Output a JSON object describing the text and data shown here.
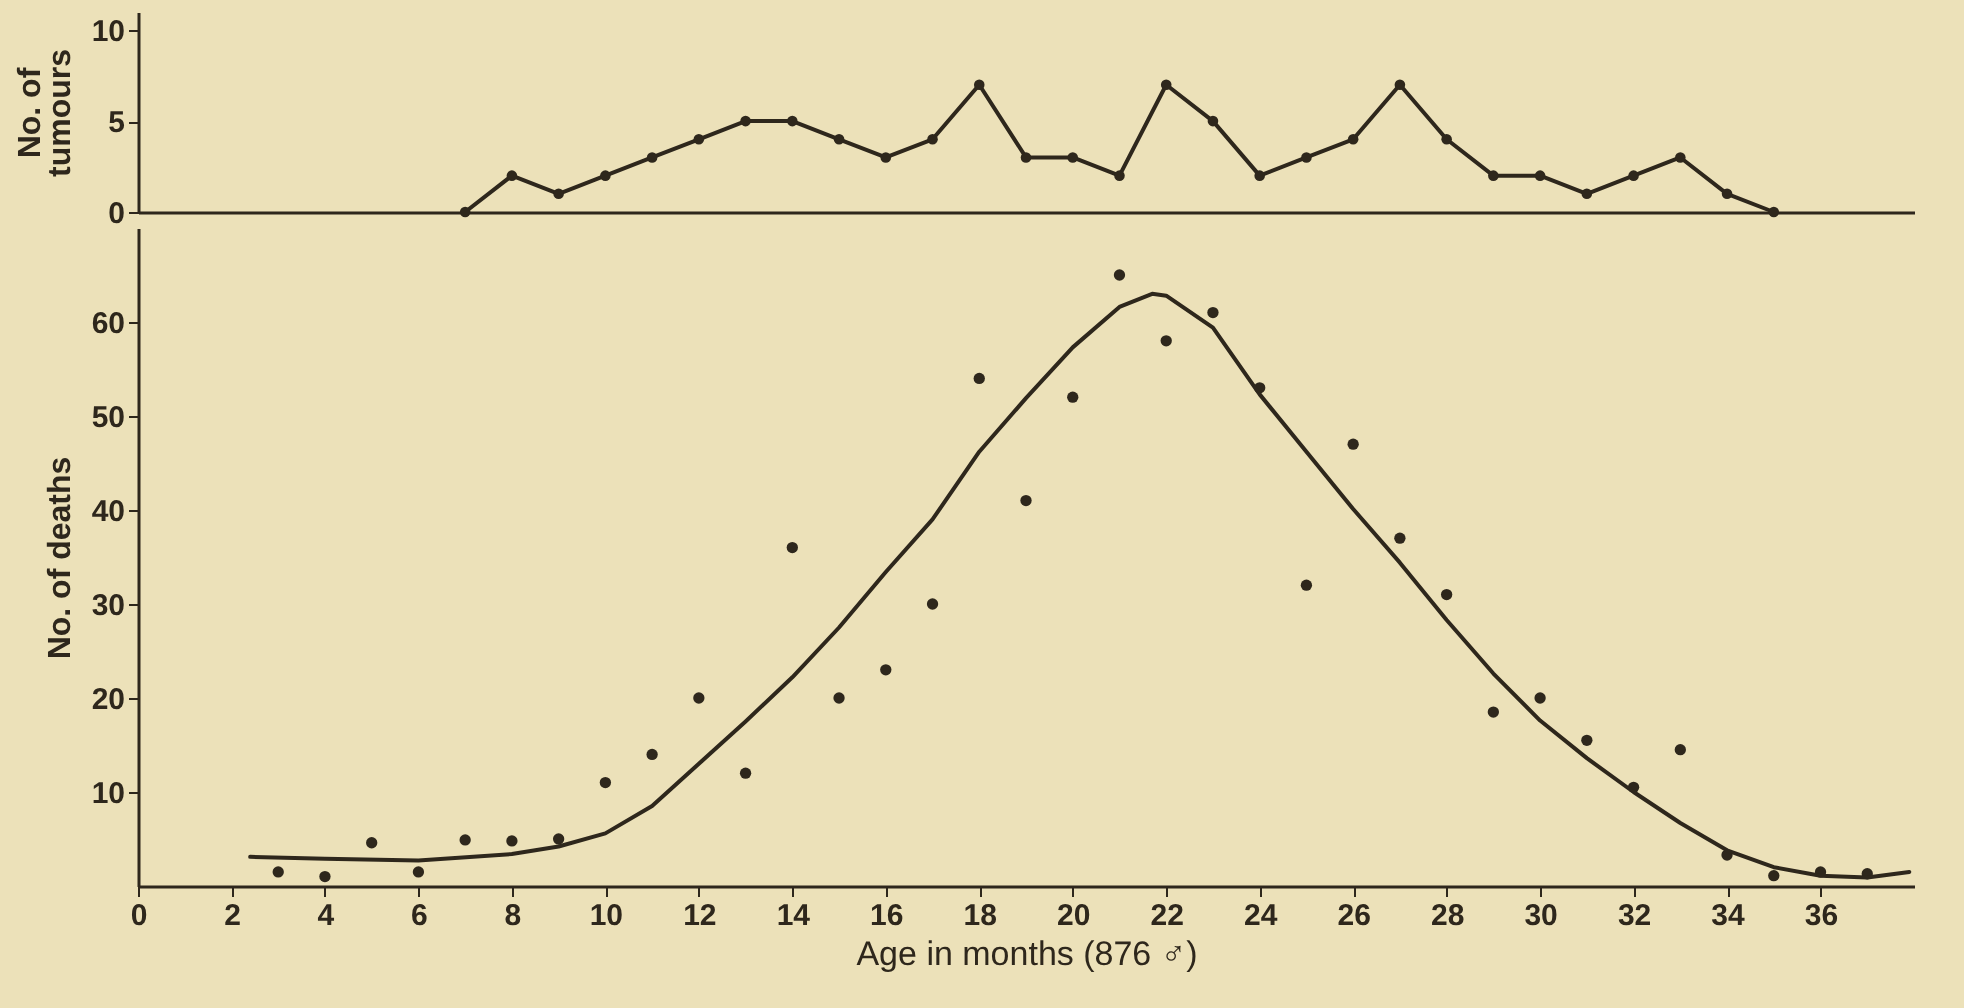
{
  "chart_data": [
    {
      "type": "line",
      "ylabel": "No. of\ntumours",
      "xlim": [
        0,
        38
      ],
      "ylim": [
        0,
        11
      ],
      "yticks": [
        0,
        5,
        10
      ],
      "tick_labels": "y",
      "marker": "circle",
      "x": [
        7,
        8,
        9,
        10,
        11,
        12,
        13,
        14,
        15,
        16,
        17,
        18,
        19,
        20,
        21,
        22,
        23,
        24,
        25,
        26,
        27,
        28,
        29,
        30,
        31,
        32,
        33,
        34,
        35
      ],
      "series": [
        {
          "color": "#2e271c",
          "values": [
            0,
            2,
            1,
            2,
            3,
            4,
            5,
            5,
            4,
            3,
            4,
            7,
            3,
            3,
            2,
            7,
            5,
            2,
            3,
            4,
            7,
            4,
            2,
            2,
            1,
            2,
            3,
            1,
            0
          ]
        }
      ]
    },
    {
      "type": "scatter",
      "xlabel": "Age in months (876 ♂)",
      "ylabel": "No. of deaths",
      "xlim": [
        0,
        38
      ],
      "ylim": [
        0,
        70
      ],
      "xticks": [
        0,
        2,
        4,
        6,
        8,
        10,
        12,
        14,
        16,
        18,
        20,
        22,
        24,
        26,
        28,
        30,
        32,
        34,
        36
      ],
      "yticks": [
        10,
        20,
        30,
        40,
        50,
        60
      ],
      "marker": "circle",
      "x": [
        3,
        4,
        5,
        6,
        7,
        8,
        9,
        10,
        11,
        12,
        13,
        14,
        15,
        16,
        17,
        18,
        19,
        20,
        21,
        22,
        23,
        24,
        25,
        26,
        27,
        28,
        29,
        30,
        31,
        32,
        33,
        34,
        35,
        36,
        37
      ],
      "series": [
        {
          "color": "#2e271c",
          "values": [
            1.5,
            1,
            4.6,
            1.5,
            4.9,
            4.8,
            5,
            11,
            14,
            20,
            12,
            36,
            20,
            23,
            30,
            54,
            41,
            52,
            65,
            58,
            61,
            53,
            32,
            47,
            37,
            31,
            18.5,
            20,
            15.5,
            10.5,
            14.5,
            3.3,
            1.1,
            1.5,
            1.3
          ]
        },
        {
          "type": "line",
          "marker": "none",
          "color": "#2e271c",
          "x": [
            2.4,
            4,
            6,
            8,
            9,
            10,
            11,
            12,
            13,
            14,
            15,
            16,
            17,
            18,
            19,
            20,
            21,
            21.7,
            22,
            23,
            24,
            25,
            26,
            27,
            28,
            29,
            30,
            31,
            32,
            33,
            34,
            35,
            36,
            37,
            37.9
          ],
          "values": [
            3.1,
            2.9,
            2.7,
            3.4,
            4.2,
            5.6,
            8.5,
            13,
            17.5,
            22.2,
            27.5,
            33.4,
            39,
            46.2,
            51.9,
            57.3,
            61.6,
            63,
            62.8,
            59.4,
            52.3,
            46.2,
            40.1,
            34.4,
            28.3,
            22.6,
            17.6,
            13.6,
            10,
            6.7,
            3.8,
            2,
            1.1,
            0.9,
            1.5
          ]
        }
      ]
    }
  ]
}
